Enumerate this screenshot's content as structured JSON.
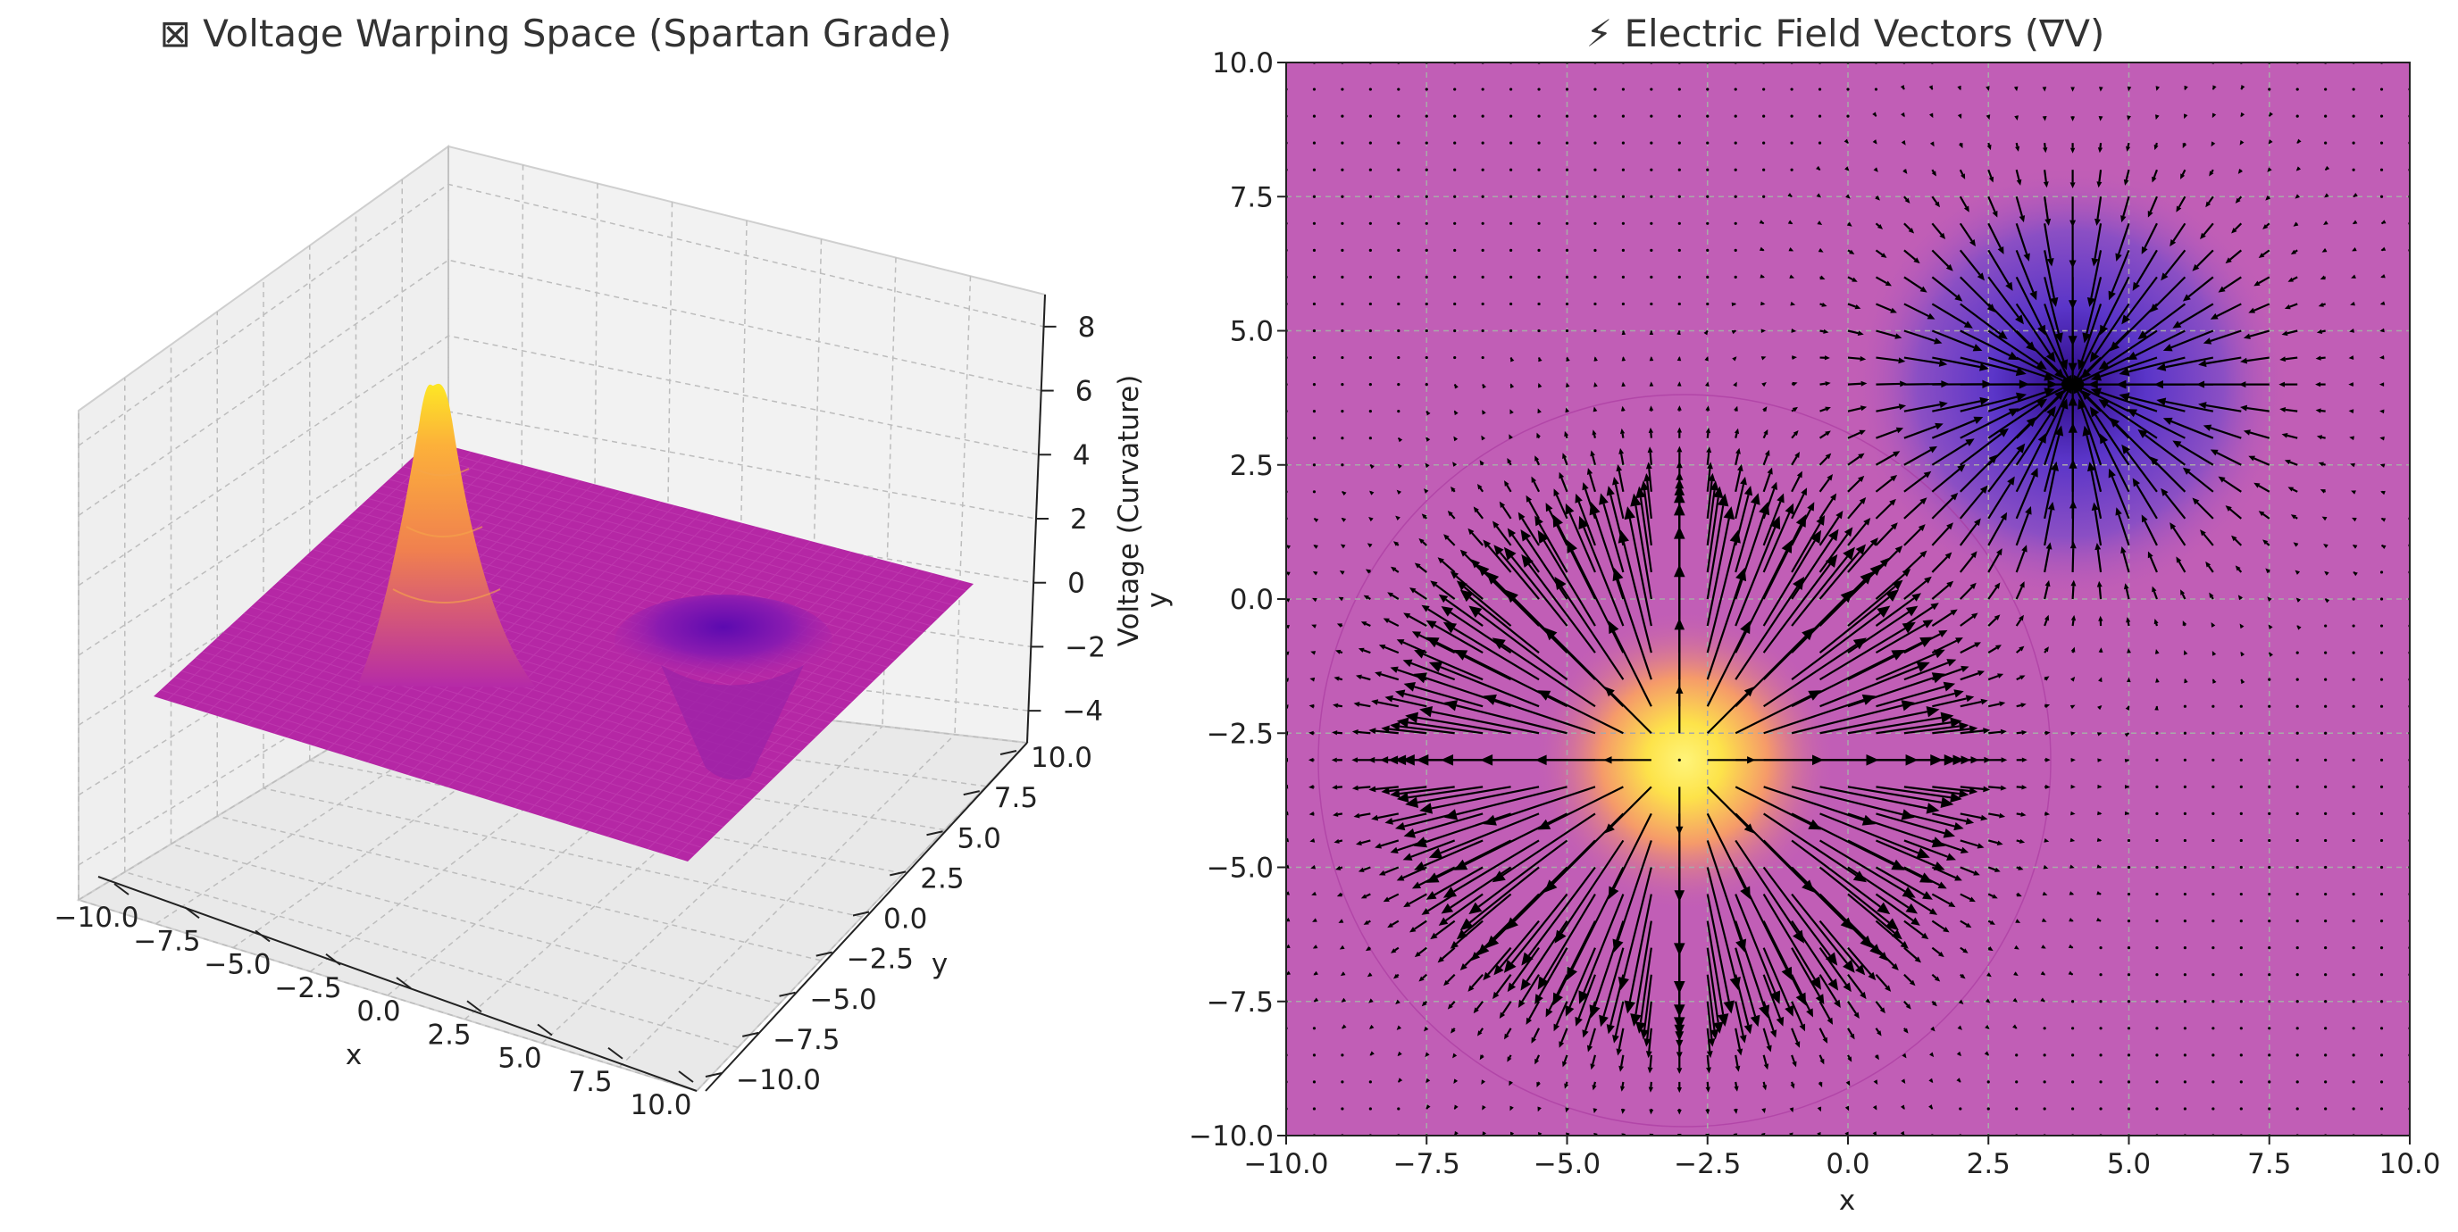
{
  "chart_data": [
    {
      "type": "surface3d",
      "title": "⊠ Voltage Warping Space (Spartan Grade)",
      "xlabel": "x",
      "ylabel": "y",
      "zlabel": "Voltage (Curvature)",
      "zlabel_extra": "y",
      "xlim": [
        -10,
        10
      ],
      "ylim": [
        -10,
        10
      ],
      "zlim": [
        -5,
        9
      ],
      "x_ticks": [
        "−10.0",
        "−7.5",
        "−5.0",
        "−2.5",
        "0.0",
        "2.5",
        "5.0",
        "7.5",
        "10.0"
      ],
      "y_ticks": [
        "−10.0",
        "−7.5",
        "−5.0",
        "−2.5",
        "0.0",
        "2.5",
        "5.0",
        "7.5",
        "10.0"
      ],
      "z_ticks": [
        "−4",
        "−2",
        "0",
        "2",
        "4",
        "6",
        "8"
      ],
      "x_tick_values": [
        -10,
        -7.5,
        -5,
        -2.5,
        0,
        2.5,
        5,
        7.5,
        10
      ],
      "y_tick_values": [
        -10,
        -7.5,
        -5,
        -2.5,
        0,
        2.5,
        5,
        7.5,
        10
      ],
      "z_tick_values": [
        -4,
        -2,
        0,
        2,
        4,
        6,
        8
      ],
      "features": [
        {
          "kind": "peak",
          "x": -3,
          "y": -3,
          "z": 8.7
        },
        {
          "kind": "well",
          "x": 4,
          "y": 4,
          "z": -5
        }
      ],
      "colormap": "plasma",
      "grid": true
    },
    {
      "type": "quiver",
      "title": "⚡ Electric Field Vectors (∇V)",
      "xlabel": "x",
      "ylabel": "",
      "xlim": [
        -10,
        10
      ],
      "ylim": [
        -10,
        10
      ],
      "x_ticks": [
        "−10.0",
        "−7.5",
        "−5.0",
        "−2.5",
        "0.0",
        "2.5",
        "5.0",
        "7.5",
        "10.0"
      ],
      "y_ticks": [
        "−10.0",
        "−7.5",
        "−5.0",
        "−2.5",
        "0.0",
        "2.5",
        "5.0",
        "7.5",
        "10.0"
      ],
      "x_tick_values": [
        -10,
        -7.5,
        -5,
        -2.5,
        0,
        2.5,
        5,
        7.5,
        10
      ],
      "y_tick_values": [
        -10,
        -7.5,
        -5,
        -2.5,
        0,
        2.5,
        5,
        7.5,
        10
      ],
      "sources": [
        {
          "kind": "peak",
          "x": -3,
          "y": -3,
          "direction": "outward",
          "color": "#fde725"
        },
        {
          "kind": "well",
          "x": 4,
          "y": 4,
          "direction": "inward",
          "color": "#5b2fb0"
        }
      ],
      "background_color": "#c15eb6",
      "grid": true,
      "grid_style": "dashed"
    }
  ]
}
